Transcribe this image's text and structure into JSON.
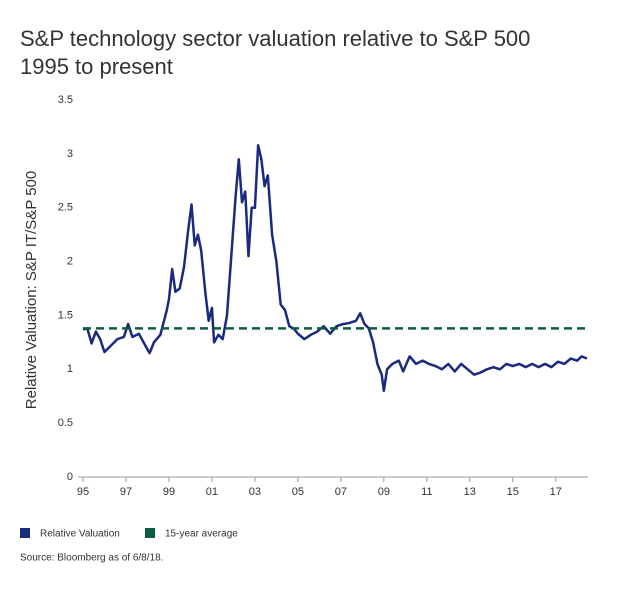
{
  "chart_data": {
    "type": "line",
    "title": "S&P technology sector valuation relative to S&P 500",
    "subtitle": "1995 to present",
    "y_label": "Relative Valuation: S&P IT/S&P 500",
    "source": "Source: Bloomberg as of 6/8/18.",
    "xlim": [
      1995,
      2018.5
    ],
    "ylim": [
      0,
      3.5
    ],
    "yticks": [
      0,
      0.5,
      1,
      1.5,
      2,
      2.5,
      3,
      3.5
    ],
    "xticks": [
      {
        "value": 1995,
        "label": "95"
      },
      {
        "value": 1997,
        "label": "97"
      },
      {
        "value": 1999,
        "label": "99"
      },
      {
        "value": 2001,
        "label": "01"
      },
      {
        "value": 2003,
        "label": "03"
      },
      {
        "value": 2005,
        "label": "05"
      },
      {
        "value": 2007,
        "label": "07"
      },
      {
        "value": 2009,
        "label": "09"
      },
      {
        "value": 2011,
        "label": "11"
      },
      {
        "value": 2013,
        "label": "13"
      },
      {
        "value": 2015,
        "label": "15"
      },
      {
        "value": 2017,
        "label": "17"
      }
    ],
    "series": [
      {
        "name": "Relative Valuation",
        "color": "#1b2a7e",
        "dash": false,
        "x": [
          1995.0,
          1995.2,
          1995.4,
          1995.6,
          1995.8,
          1996.0,
          1996.3,
          1996.6,
          1996.9,
          1997.1,
          1997.3,
          1997.6,
          1997.9,
          1998.1,
          1998.3,
          1998.6,
          1998.9,
          1999.0,
          1999.15,
          1999.3,
          1999.5,
          1999.7,
          1999.9,
          2000.05,
          2000.2,
          2000.35,
          2000.5,
          2000.7,
          2000.85,
          2001.0,
          2001.1,
          2001.3,
          2001.5,
          2001.7,
          2001.9,
          2002.1,
          2002.25,
          2002.4,
          2002.55,
          2002.7,
          2002.85,
          2003.0,
          2003.15,
          2003.3,
          2003.45,
          2003.6,
          2003.8,
          2004.0,
          2004.2,
          2004.4,
          2004.6,
          2004.8,
          2005.0,
          2005.3,
          2005.6,
          2005.9,
          2006.2,
          2006.5,
          2006.8,
          2007.1,
          2007.4,
          2007.7,
          2007.9,
          2008.1,
          2008.3,
          2008.5,
          2008.7,
          2008.9,
          2009.0,
          2009.15,
          2009.4,
          2009.7,
          2009.9,
          2010.2,
          2010.5,
          2010.8,
          2011.1,
          2011.4,
          2011.7,
          2012.0,
          2012.3,
          2012.6,
          2012.9,
          2013.2,
          2013.5,
          2013.8,
          2014.1,
          2014.4,
          2014.7,
          2015.0,
          2015.3,
          2015.6,
          2015.9,
          2016.2,
          2016.5,
          2016.8,
          2017.1,
          2017.4,
          2017.7,
          2018.0,
          2018.2,
          2018.45
        ],
        "values": [
          1.37,
          1.38,
          1.24,
          1.35,
          1.28,
          1.16,
          1.22,
          1.28,
          1.3,
          1.42,
          1.3,
          1.33,
          1.22,
          1.15,
          1.25,
          1.32,
          1.55,
          1.65,
          1.93,
          1.72,
          1.75,
          1.95,
          2.3,
          2.53,
          2.15,
          2.25,
          2.1,
          1.7,
          1.45,
          1.57,
          1.25,
          1.32,
          1.28,
          1.5,
          2.05,
          2.6,
          2.95,
          2.55,
          2.65,
          2.05,
          2.5,
          2.5,
          3.08,
          2.95,
          2.7,
          2.8,
          2.25,
          2.0,
          1.6,
          1.55,
          1.4,
          1.38,
          1.33,
          1.28,
          1.32,
          1.35,
          1.4,
          1.33,
          1.4,
          1.42,
          1.43,
          1.45,
          1.52,
          1.42,
          1.38,
          1.25,
          1.05,
          0.95,
          0.8,
          1.0,
          1.05,
          1.08,
          0.98,
          1.12,
          1.05,
          1.08,
          1.05,
          1.03,
          1.0,
          1.05,
          0.98,
          1.05,
          1.0,
          0.95,
          0.97,
          1.0,
          1.02,
          1.0,
          1.05,
          1.03,
          1.05,
          1.02,
          1.05,
          1.02,
          1.05,
          1.02,
          1.07,
          1.05,
          1.1,
          1.08,
          1.12,
          1.1
        ]
      },
      {
        "name": "15-year average",
        "color": "#0b5e3f",
        "dash": true,
        "x": [
          1995,
          2018.5
        ],
        "values": [
          1.38,
          1.38
        ]
      }
    ]
  }
}
